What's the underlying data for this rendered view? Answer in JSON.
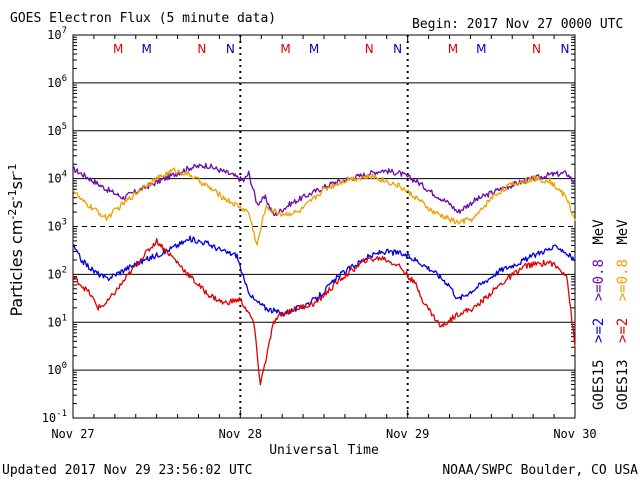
{
  "header": {
    "title": "GOES Electron Flux (5 minute data)",
    "begin": "Begin: 2017 Nov 27 0000 UTC"
  },
  "footer": {
    "updated": "Updated 2017 Nov 29 23:56:02 UTC",
    "credit": "NOAA/SWPC Boulder, CO USA"
  },
  "y_axis_label": "Particles cm-2s-1sr-1",
  "y_axis_label_parts": {
    "base": "Particles cm",
    "e1": "-2",
    "s": "s",
    "e2": "-1",
    "sr": "sr",
    "e3": "-1"
  },
  "side_labels": {
    "goes15": "GOES15",
    "goes13": "GOES13",
    "g15_ge2": ">=2",
    "g13_ge2": ">=2",
    "g15_ge08": ">=0.8",
    "g13_ge08": ">=0.8",
    "mev1": "MeV",
    "mev2": "MeV"
  },
  "chart_data": {
    "type": "line",
    "title": "GOES Electron Flux (5 minute data)",
    "xlabel": "Universal Time",
    "ylabel": "Particles cm-2s-1sr-1",
    "yscale": "log",
    "ylim": [
      0.1,
      10000000
    ],
    "xlim_days": [
      0,
      3
    ],
    "x_tick_labels": [
      "Nov 27",
      "Nov 28",
      "Nov 29",
      "Nov 30"
    ],
    "y_tick_exponents": [
      -1,
      0,
      1,
      2,
      3,
      4,
      5,
      6,
      7
    ],
    "threshold_line": {
      "value": 1000,
      "style": "dashed"
    },
    "grid": true,
    "day_markers": [
      {
        "label": "M",
        "day": 0.33,
        "color": "#e00000"
      },
      {
        "label": "M",
        "day": 0.5,
        "color": "#0000c0"
      },
      {
        "label": "N",
        "day": 0.83,
        "color": "#e00000"
      },
      {
        "label": "N",
        "day": 1.0,
        "color": "#0000c0"
      },
      {
        "label": "M",
        "day": 1.33,
        "color": "#e00000"
      },
      {
        "label": "M",
        "day": 1.5,
        "color": "#0000c0"
      },
      {
        "label": "N",
        "day": 1.83,
        "color": "#e00000"
      },
      {
        "label": "N",
        "day": 2.0,
        "color": "#0000c0"
      },
      {
        "label": "M",
        "day": 2.33,
        "color": "#e00000"
      },
      {
        "label": "M",
        "day": 2.5,
        "color": "#0000c0"
      },
      {
        "label": "N",
        "day": 2.83,
        "color": "#e00000"
      },
      {
        "label": "N",
        "day": 3.0,
        "color": "#0000c0"
      }
    ],
    "series": [
      {
        "name": "GOES15 >=0.8 MeV",
        "color": "#6a0dad",
        "x": [
          0,
          0.08,
          0.2,
          0.3,
          0.45,
          0.6,
          0.7,
          0.8,
          0.95,
          1.02,
          1.05,
          1.1,
          1.15,
          1.2,
          1.3,
          1.4,
          1.55,
          1.7,
          1.85,
          1.95,
          2.05,
          2.15,
          2.25,
          2.3,
          2.4,
          2.55,
          2.7,
          2.85,
          2.95,
          3.0
        ],
        "y": [
          16000,
          11000,
          6000,
          4000,
          7000,
          12000,
          17000,
          19000,
          12000,
          9000,
          13000,
          3000,
          4000,
          1700,
          3000,
          4500,
          8000,
          11000,
          15000,
          13000,
          9000,
          5000,
          3000,
          2000,
          3500,
          6000,
          9000,
          12000,
          13000,
          8000
        ]
      },
      {
        "name": "GOES13 >=0.8 MeV",
        "color": "#f0a000",
        "x": [
          0,
          0.05,
          0.15,
          0.2,
          0.3,
          0.45,
          0.6,
          0.7,
          0.8,
          0.9,
          1.0,
          1.05,
          1.1,
          1.15,
          1.25,
          1.35,
          1.5,
          1.65,
          1.8,
          1.95,
          2.05,
          2.15,
          2.3,
          2.4,
          2.5,
          2.6,
          2.75,
          2.85,
          2.95,
          3.0
        ],
        "y": [
          6000,
          3500,
          2000,
          1500,
          3000,
          8000,
          15000,
          12000,
          7000,
          4000,
          2500,
          2000,
          400,
          2500,
          1800,
          2000,
          6000,
          10000,
          11000,
          7000,
          4000,
          2000,
          1200,
          1500,
          4000,
          7000,
          10000,
          9000,
          4000,
          1300
        ]
      },
      {
        "name": "GOES15 >=2 MeV",
        "color": "#0000e0",
        "x": [
          0,
          0.05,
          0.12,
          0.2,
          0.35,
          0.55,
          0.7,
          0.8,
          0.9,
          0.98,
          1.03,
          1.08,
          1.15,
          1.25,
          1.35,
          1.45,
          1.6,
          1.75,
          1.85,
          1.95,
          2.05,
          2.15,
          2.25,
          2.3,
          2.4,
          2.55,
          2.7,
          2.8,
          2.9,
          3.0
        ],
        "y": [
          400,
          200,
          120,
          80,
          150,
          300,
          550,
          450,
          300,
          250,
          60,
          30,
          20,
          15,
          20,
          30,
          100,
          220,
          300,
          280,
          200,
          120,
          60,
          30,
          50,
          120,
          200,
          300,
          380,
          200
        ]
      },
      {
        "name": "GOES13 >=2 MeV",
        "color": "#e00000",
        "x": [
          0,
          0.05,
          0.1,
          0.15,
          0.2,
          0.3,
          0.4,
          0.5,
          0.6,
          0.7,
          0.8,
          0.9,
          1.0,
          1.03,
          1.08,
          1.12,
          1.2,
          1.25,
          1.35,
          1.45,
          1.6,
          1.75,
          1.85,
          1.95,
          2.05,
          2.1,
          2.2,
          2.3,
          2.4,
          2.55,
          2.7,
          2.85,
          2.95,
          3.0
        ],
        "y": [
          90,
          60,
          40,
          20,
          25,
          70,
          200,
          500,
          220,
          90,
          40,
          25,
          30,
          20,
          10,
          0.5,
          10,
          15,
          20,
          25,
          80,
          200,
          220,
          150,
          60,
          25,
          8,
          15,
          20,
          60,
          150,
          180,
          100,
          3
        ]
      }
    ]
  }
}
